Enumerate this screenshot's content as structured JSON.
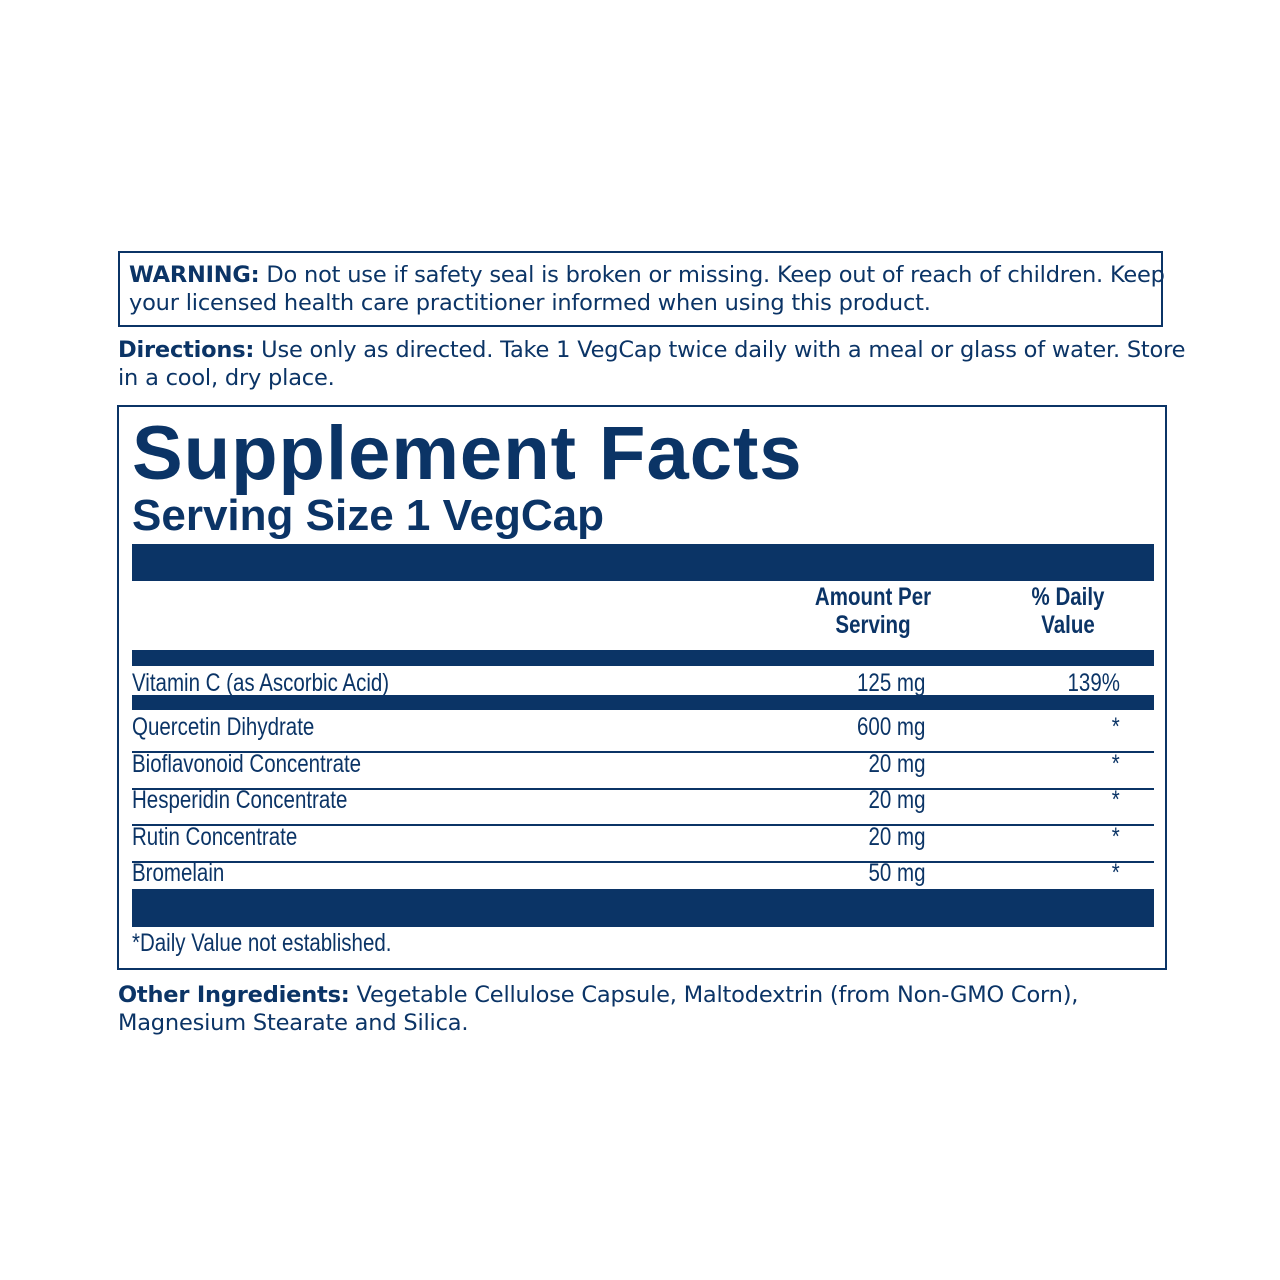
{
  "warning": {
    "label": "WARNING:",
    "line1": " Do not use if safety seal is broken or missing. Keep out of reach of children. Keep",
    "line2": "your licensed health care practitioner informed when using this product."
  },
  "directions": {
    "label": "Directions:",
    "line1": " Use only as directed. Take 1 VegCap twice daily with a meal or glass of water. Store",
    "line2": "in a cool, dry place."
  },
  "facts": {
    "title": "Supplement Facts",
    "serving_size": "Serving Size 1 VegCap",
    "headers": {
      "amount_1": "Amount Per",
      "amount_2": "Serving",
      "dv_1": "% Daily",
      "dv_2": "Value"
    },
    "rows": [
      {
        "name": "Vitamin C (as Ascorbic Acid)",
        "amount": "125 mg",
        "dv": "139%"
      },
      {
        "name": "Quercetin Dihydrate",
        "amount": "600 mg",
        "dv": "*"
      },
      {
        "name": "Bioflavonoid Concentrate",
        "amount": "20 mg",
        "dv": "*"
      },
      {
        "name": "Hesperidin Concentrate",
        "amount": "20 mg",
        "dv": "*"
      },
      {
        "name": "Rutin Concentrate",
        "amount": "20 mg",
        "dv": "*"
      },
      {
        "name": "Bromelain",
        "amount": "50 mg",
        "dv": "*"
      }
    ],
    "footnote": "*Daily Value not established."
  },
  "other_ingredients": {
    "label": "Other Ingredients:",
    "line1": " Vegetable Cellulose Capsule, Maltodextrin (from Non-GMO Corn),",
    "line2": "Magnesium Stearate and Silica."
  },
  "colors": {
    "ink": "#0b3466"
  }
}
